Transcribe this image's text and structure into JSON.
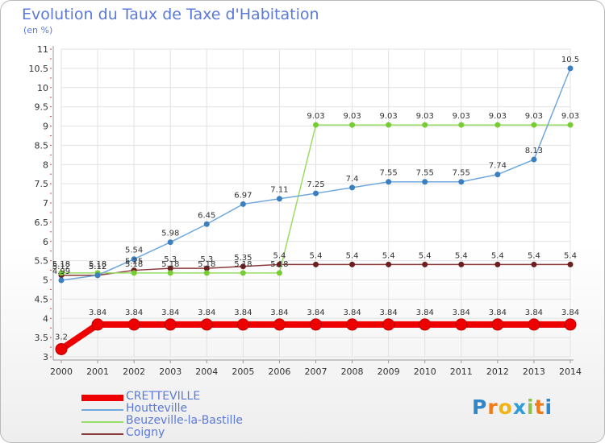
{
  "header": {
    "title": "Evolution du Taux de Taxe d'Habitation",
    "subtitle": "(en %)"
  },
  "logo": {
    "text": "Proxiti",
    "letters": [
      {
        "ch": "P",
        "color": "#2f86c8"
      },
      {
        "ch": "r",
        "color": "#f07b17"
      },
      {
        "ch": "o",
        "color": "#f0b417"
      },
      {
        "ch": "x",
        "color": "#2f9ed8"
      },
      {
        "ch": "i",
        "color": "#8bc34a"
      },
      {
        "ch": "t",
        "color": "#f07b17"
      },
      {
        "ch": "i",
        "color": "#2f86c8"
      }
    ]
  },
  "chart_data": {
    "type": "line",
    "title": "Evolution du Taux de Taxe d'Habitation",
    "ylabel": "(en %)",
    "xlabel": "",
    "x": [
      "2000",
      "2001",
      "2002",
      "2003",
      "2004",
      "2005",
      "2006",
      "2007",
      "2008",
      "2009",
      "2010",
      "2011",
      "2012",
      "2013",
      "2014"
    ],
    "ylim": [
      3,
      11
    ],
    "yticks": [
      "3",
      "3.5",
      "4",
      "4.5",
      "5",
      "5.5",
      "6",
      "6.5",
      "7",
      "7.5",
      "8",
      "8.5",
      "9",
      "9.5",
      "10",
      "10.5",
      "11"
    ],
    "grid": true,
    "legend_position": "bottom-left",
    "series": [
      {
        "name": "CRETTEVILLE",
        "color": "#ee0000",
        "thick": true,
        "values": [
          3.2,
          3.84,
          3.84,
          3.84,
          3.84,
          3.84,
          3.84,
          3.84,
          3.84,
          3.84,
          3.84,
          3.84,
          3.84,
          3.84,
          3.84
        ],
        "labels": [
          "3.2",
          "3.84",
          "3.84",
          "3.84",
          "3.84",
          "3.84",
          "3.84",
          "3.84",
          "3.84",
          "3.84",
          "3.84",
          "3.84",
          "3.84",
          "3.84",
          "3.84"
        ]
      },
      {
        "name": "Houtteville",
        "color": "#6fa8dc",
        "marker": "#3b7fc0",
        "values": [
          4.99,
          5.12,
          5.54,
          5.98,
          6.45,
          6.97,
          7.11,
          7.25,
          7.4,
          7.55,
          7.55,
          7.55,
          7.74,
          8.13,
          10.5
        ],
        "labels": [
          "4.99",
          "5.12",
          "5.54",
          "5.98",
          "6.45",
          "6.97",
          "7.11",
          "7.25",
          "7.4",
          "7.55",
          "7.55",
          "7.55",
          "7.74",
          "8.13",
          "10.5"
        ]
      },
      {
        "name": "Beuzeville-la-Bastille",
        "color": "#99dd66",
        "marker": "#77cc33",
        "values": [
          5.18,
          5.18,
          5.18,
          5.18,
          5.18,
          5.18,
          5.18,
          9.03,
          9.03,
          9.03,
          9.03,
          9.03,
          9.03,
          9.03,
          9.03
        ],
        "labels": [
          "5.18",
          "5.18",
          "5.18",
          "5.18",
          "5.18",
          "5.18",
          "5.18",
          "9.03",
          "9.03",
          "9.03",
          "9.03",
          "9.03",
          "9.03",
          "9.03",
          "9.03"
        ]
      },
      {
        "name": "Coigny",
        "color": "#8b3a3a",
        "marker": "#6b1f1f",
        "values": [
          5.12,
          5.12,
          5.25,
          5.3,
          5.3,
          5.35,
          5.4,
          5.4,
          5.4,
          5.4,
          5.4,
          5.4,
          5.4,
          5.4,
          5.4
        ],
        "labels": [
          "5.12",
          "5.12",
          "5.25",
          "5.3",
          "5.3",
          "5.35",
          "5.4",
          "5.4",
          "5.4",
          "5.4",
          "5.4",
          "5.4",
          "5.4",
          "5.4",
          "5.4"
        ]
      }
    ]
  }
}
